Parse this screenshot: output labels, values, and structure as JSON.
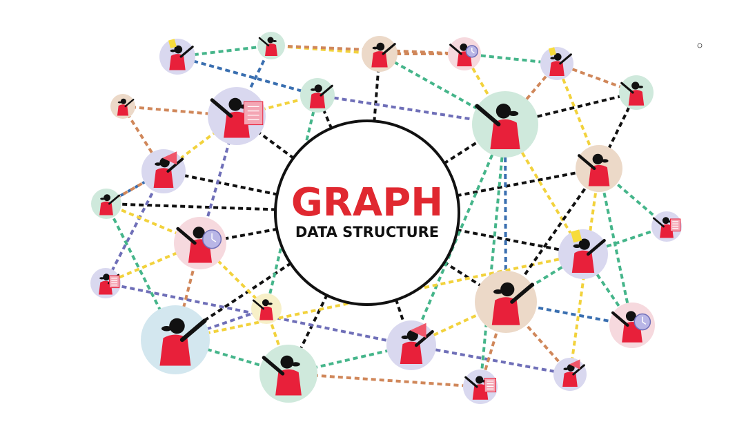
{
  "diagram": {
    "title": "GRAPH",
    "subtitle": "DATA STRUCTURE",
    "colors": {
      "title": "#e02830",
      "subtitle": "#111111",
      "hub_stroke": "#111111",
      "figure_body": "#e8203a",
      "figure_skin": "#111111"
    },
    "edge_colors": {
      "black": "#111111",
      "blue": "#3a6fb0",
      "purple": "#6f6fb8",
      "green": "#45b58a",
      "yellow": "#f2d23c",
      "orange": "#d0875a"
    },
    "node_colors": {
      "mint": "#cfe9dc",
      "lavender": "#d9d8ef",
      "peach": "#ecd9c8",
      "pink": "#f6d9de",
      "cream": "#f7f0c8",
      "skyblue": "#d3e7ef"
    }
  }
}
